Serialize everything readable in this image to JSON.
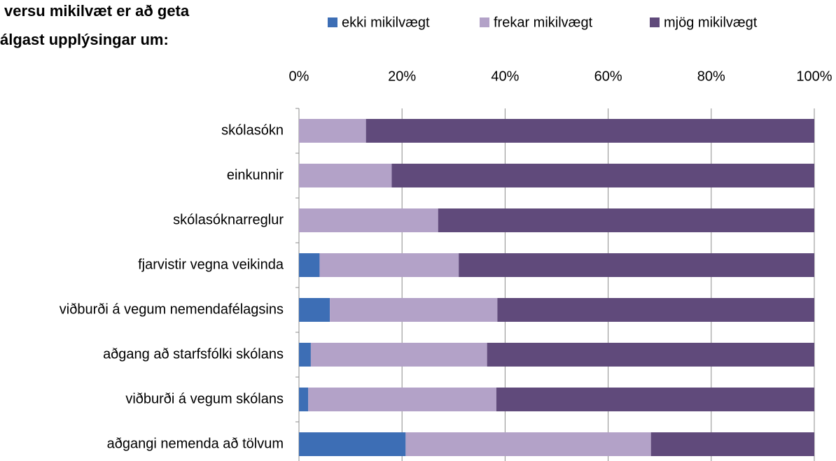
{
  "chart_data": {
    "type": "stacked-barh",
    "title": [
      "versu mikilvæt er að geta",
      "álgast upplýsingar um:"
    ],
    "categories": [
      "skólasókn",
      "einkunnir",
      "skólasóknarreglur",
      "fjarvistir vegna veikinda",
      "viðburði á vegum nemendafélagsins",
      "aðgang að starfsfólki skólans",
      "viðburði á vegum skólans",
      "aðgangi nemenda að tölvum"
    ],
    "series": [
      {
        "name": "ekki mikilvægt",
        "color": "#3d6eb5",
        "values": [
          0,
          0,
          0,
          4,
          6,
          2.3,
          1.8,
          20.7
        ]
      },
      {
        "name": "frekar mikilvægt",
        "color": "#b3a2c8",
        "values": [
          13,
          18,
          27,
          27,
          32.5,
          34.2,
          36.5,
          47.6
        ]
      },
      {
        "name": "mjög mikilvægt",
        "color": "#604a7b",
        "values": [
          87,
          82,
          73,
          69,
          61.5,
          63.5,
          61.7,
          31.7
        ]
      }
    ],
    "xlim": [
      0,
      100
    ],
    "xticks": [
      {
        "value": 0,
        "label": "0%"
      },
      {
        "value": 20,
        "label": "20%"
      },
      {
        "value": 40,
        "label": "40%"
      },
      {
        "value": 60,
        "label": "60%"
      },
      {
        "value": 80,
        "label": "80%"
      },
      {
        "value": 100,
        "label": "100%"
      }
    ],
    "grid": true,
    "legend": "top"
  }
}
